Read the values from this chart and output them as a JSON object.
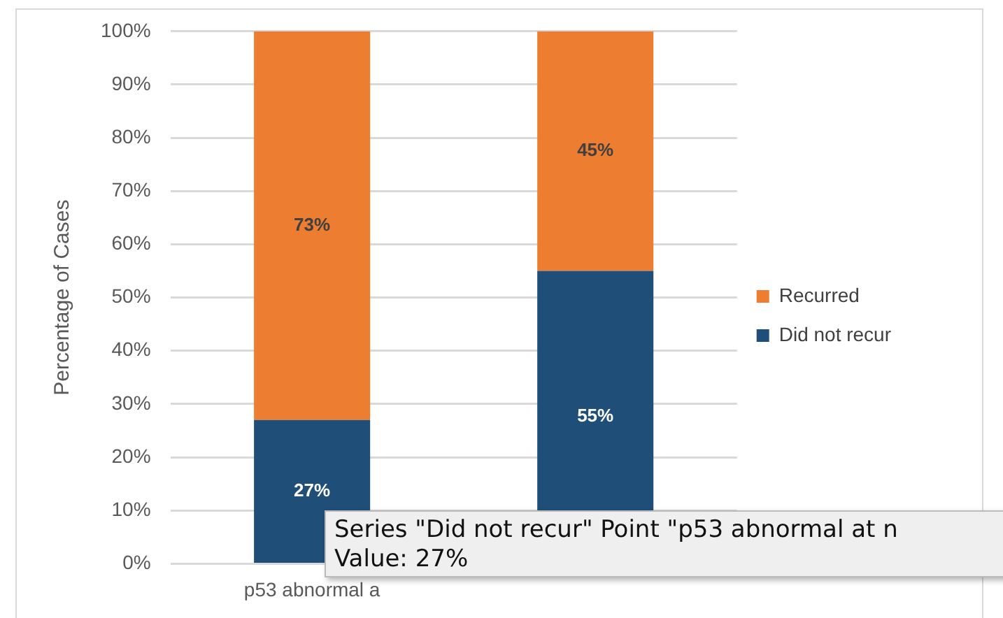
{
  "chart_data": {
    "type": "bar",
    "stacked": true,
    "ylabel": "Percentage of Cases",
    "categories": [
      "p53 abnormal a",
      null
    ],
    "series": [
      {
        "name": "Did not recur",
        "color": "#1f4e79",
        "values": [
          27,
          55
        ],
        "value_labels": [
          "27%",
          "55%"
        ]
      },
      {
        "name": "Recurred",
        "color": "#ed7d31",
        "values": [
          73,
          45
        ],
        "value_labels": [
          "73%",
          "45%"
        ]
      }
    ],
    "ylim": [
      0,
      100
    ],
    "yticks": [
      {
        "value": 0,
        "label": "0%"
      },
      {
        "value": 10,
        "label": "10%"
      },
      {
        "value": 20,
        "label": "20%"
      },
      {
        "value": 30,
        "label": "30%"
      },
      {
        "value": 40,
        "label": "40%"
      },
      {
        "value": 50,
        "label": "50%"
      },
      {
        "value": 60,
        "label": "60%"
      },
      {
        "value": 70,
        "label": "70%"
      },
      {
        "value": 80,
        "label": "80%"
      },
      {
        "value": 90,
        "label": "90%"
      },
      {
        "value": 100,
        "label": "100%"
      }
    ],
    "grid": "y",
    "legend": "right",
    "annotations": [
      "Series \"Did not recur\" Point \"p53 abnormal at n",
      "Value: 27%"
    ]
  }
}
